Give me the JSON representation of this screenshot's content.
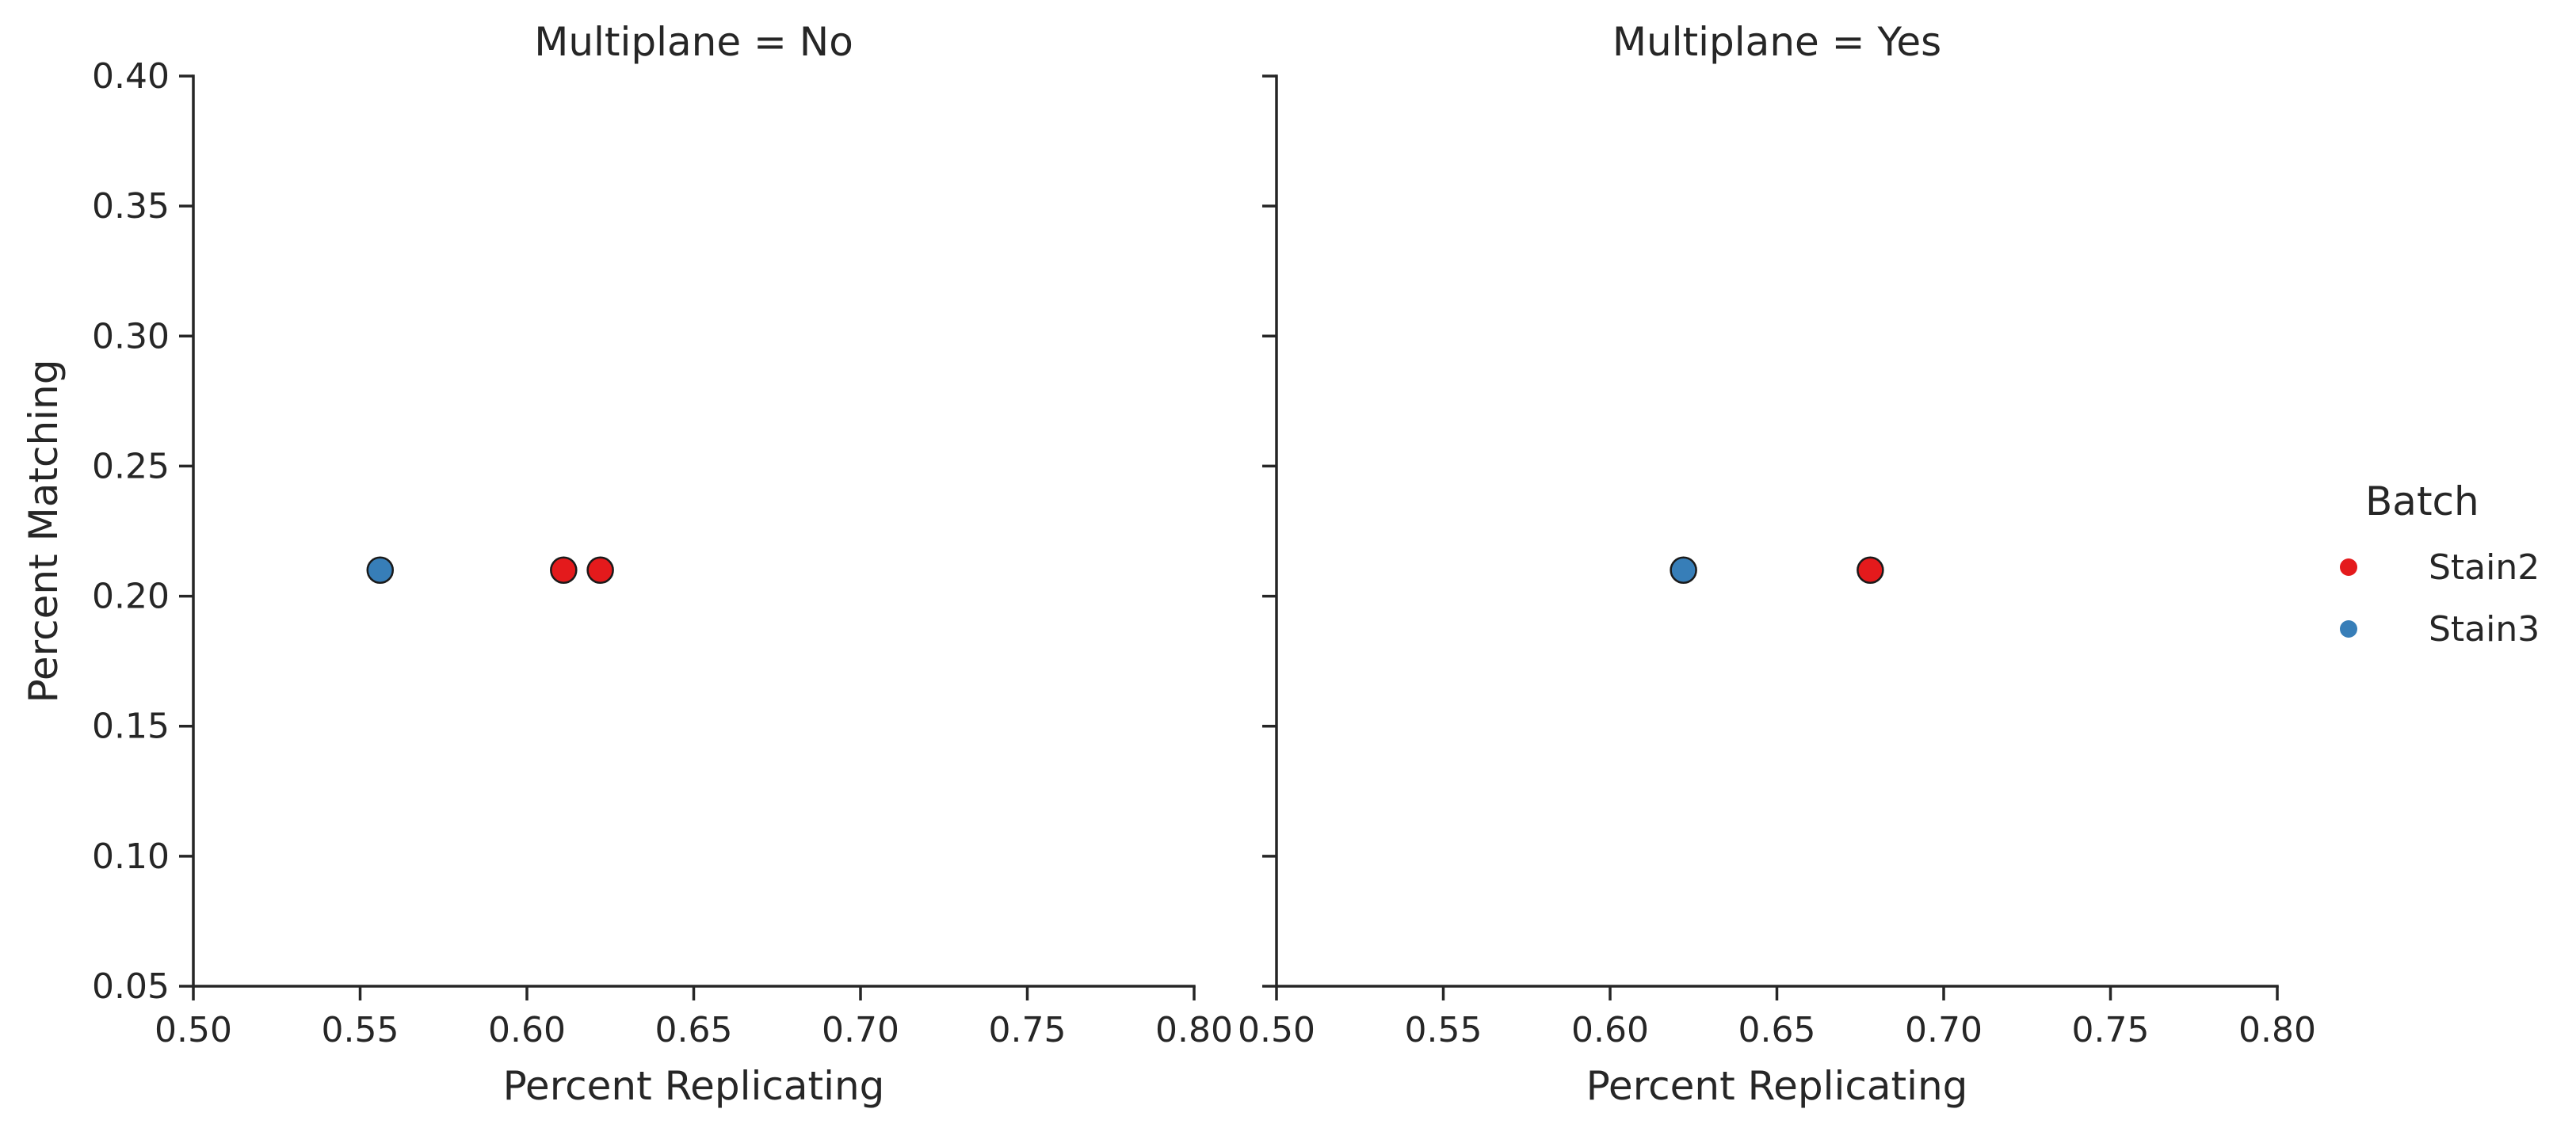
{
  "chart_data": {
    "type": "scatter",
    "facet_label": "Multiplane",
    "xlabel": "Percent Replicating",
    "ylabel": "Percent Matching",
    "xlim": [
      0.5,
      0.8
    ],
    "ylim": [
      0.05,
      0.4
    ],
    "x_ticks": [
      "0.50",
      "0.55",
      "0.60",
      "0.65",
      "0.70",
      "0.75",
      "0.80"
    ],
    "y_ticks": [
      "0.05",
      "0.10",
      "0.15",
      "0.20",
      "0.25",
      "0.30",
      "0.35",
      "0.40"
    ],
    "grid": false,
    "legend": {
      "title": "Batch",
      "placement": "right",
      "entries": [
        {
          "name": "Stain2",
          "color": "#e41a1c"
        },
        {
          "name": "Stain3",
          "color": "#377eb8"
        }
      ]
    },
    "panels": [
      {
        "title": "Multiplane = No",
        "points": [
          {
            "x": 0.556,
            "y": 0.21,
            "batch": "Stain3"
          },
          {
            "x": 0.611,
            "y": 0.21,
            "batch": "Stain2"
          },
          {
            "x": 0.622,
            "y": 0.21,
            "batch": "Stain2"
          }
        ]
      },
      {
        "title": "Multiplane = Yes",
        "points": [
          {
            "x": 0.622,
            "y": 0.21,
            "batch": "Stain3"
          },
          {
            "x": 0.678,
            "y": 0.21,
            "batch": "Stain2"
          }
        ]
      }
    ]
  }
}
